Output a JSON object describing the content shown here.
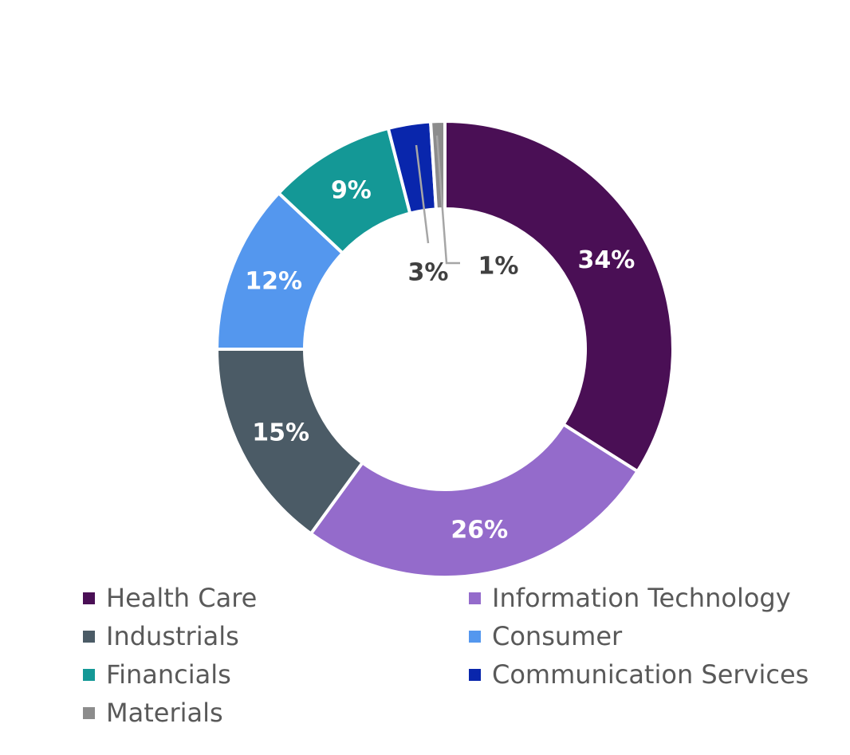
{
  "chart_data": {
    "type": "pie",
    "variant": "donut",
    "title": "",
    "categories": [
      "Health Care",
      "Information Technology",
      "Industrials",
      "Consumer",
      "Financials",
      "Communication Services",
      "Materials"
    ],
    "values": [
      34,
      26,
      15,
      12,
      9,
      3,
      1
    ],
    "labels": [
      "34%",
      "26%",
      "15%",
      "12%",
      "9%",
      "3%",
      "1%"
    ],
    "colors": [
      "#4A0F55",
      "#946BCB",
      "#4B5B66",
      "#5497EE",
      "#149896",
      "#0926AC",
      "#8C8C8C"
    ],
    "legend_position": "bottom"
  }
}
